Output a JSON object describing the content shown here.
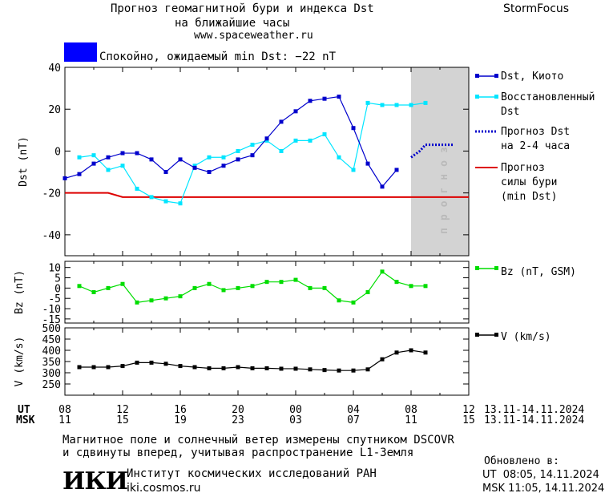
{
  "header": {
    "title_line1": "Прогноз геомагнитной бури и индекса Dst",
    "title_line2": "на ближайшие часы",
    "site": "www.spaceweather.ru",
    "brand": "StormFocus",
    "status_color": "#0000ff",
    "status_text": "Спокойно, ожидаемый min Dst: −22 nT"
  },
  "legend": {
    "dst_kyoto": "Dst, Киото",
    "restored_1": "Восстановленный",
    "restored_2": "Dst",
    "forecast_1": "Прогноз Dst",
    "forecast_2": "на 2-4 часа",
    "storm_1": "Прогноз",
    "storm_2": "силы бури",
    "storm_3": "(min Dst)",
    "bz": "Bz (nT, GSM)",
    "v": "V (km/s)"
  },
  "forecast_band_label": "прогноз",
  "time_axis": {
    "ut_label": "UT",
    "msk_label": "MSK",
    "ut_ticks": [
      "08",
      "12",
      "16",
      "20",
      "00",
      "04",
      "08",
      "12"
    ],
    "msk_ticks": [
      "11",
      "15",
      "19",
      "23",
      "03",
      "07",
      "11",
      "15"
    ],
    "range_ut": "13.11-14.11.2024",
    "range_msk": "13.11-14.11.2024"
  },
  "footer": {
    "note_1": "Магнитное поле и солнечный ветер измерены спутником DSCOVR",
    "note_2": "и сдвинуты вперед, учитывая распространение L1-Земля",
    "logo": "ИКИ",
    "institute": "Институт космических исследований РАН",
    "institute_url": "iki.cosmos.ru",
    "updated_label": "Обновлено в:",
    "updated_ut": "UT  08:05, 14.11.2024",
    "updated_msk": "MSK 11:05, 14.11.2024"
  },
  "colors": {
    "dst": "#0000cc",
    "restored": "#00e5ff",
    "forecast": "#0000cc",
    "storm": "#dd0000",
    "bz": "#00dd00",
    "v": "#000000",
    "band": "#d3d3d3"
  },
  "chart_data": [
    {
      "type": "line",
      "name": "dst",
      "xunit": "hours since 08 UT 13.11.2024",
      "ylabel": "Dst (nT)",
      "xlim": [
        0,
        28
      ],
      "ylim": [
        -50,
        40
      ],
      "yticks": [
        -40,
        -20,
        0,
        20,
        40
      ],
      "forecast_band": [
        24,
        28
      ],
      "series": [
        {
          "name": "Dst, Киото",
          "x": [
            0,
            1,
            2,
            3,
            4,
            5,
            6,
            7,
            8,
            9,
            10,
            11,
            12,
            13,
            14,
            15,
            16,
            17,
            18,
            19,
            20,
            21,
            22,
            23
          ],
          "y": [
            -13,
            -11,
            -6,
            -3,
            -1,
            -1,
            -4,
            -10,
            -4,
            -8,
            -10,
            -7,
            -4,
            -2,
            6,
            14,
            19,
            24,
            25,
            26,
            11,
            -6,
            -17,
            -9
          ]
        },
        {
          "name": "Восстановленный Dst",
          "x": [
            1,
            2,
            3,
            4,
            5,
            6,
            7,
            8,
            9,
            10,
            11,
            12,
            13,
            14,
            15,
            16,
            17,
            18,
            19,
            20,
            21,
            22,
            23,
            24,
            25
          ],
          "y": [
            -3,
            -2,
            -9,
            -7,
            -18,
            -22,
            -24,
            -25,
            -7,
            -3,
            -3,
            0,
            3,
            5,
            0,
            5,
            5,
            8,
            -3,
            -9,
            23,
            22,
            22,
            22,
            23
          ]
        },
        {
          "name": "Прогноз Dst на 2-4 часа",
          "x": [
            24,
            24.6,
            25,
            25.7,
            26.3,
            27
          ],
          "y": [
            -3,
            0,
            3,
            3,
            3,
            3
          ]
        },
        {
          "name": "Прогноз силы бури (min Dst)",
          "x": [
            0,
            3,
            4,
            28
          ],
          "y": [
            -20,
            -20,
            -22,
            -22
          ]
        }
      ]
    },
    {
      "type": "line",
      "name": "bz",
      "ylabel": "Bz (nT)",
      "xlim": [
        0,
        28
      ],
      "ylim": [
        -17,
        13
      ],
      "yticks": [
        10,
        5,
        0,
        -5,
        -10,
        -15
      ],
      "series": [
        {
          "name": "Bz (nT, GSM)",
          "x": [
            1,
            2,
            3,
            4,
            5,
            6,
            7,
            8,
            9,
            10,
            11,
            12,
            13,
            14,
            15,
            16,
            17,
            18,
            19,
            20,
            21,
            22,
            23,
            24,
            25
          ],
          "y": [
            1,
            -2,
            0,
            2,
            -7,
            -6,
            -5,
            -4,
            0,
            2,
            -1,
            0,
            1,
            3,
            3,
            4,
            0,
            0,
            -6,
            -7,
            -2,
            8,
            3,
            1,
            1
          ]
        }
      ]
    },
    {
      "type": "line",
      "name": "v",
      "ylabel": "V (km/s)",
      "xlim": [
        0,
        28
      ],
      "ylim": [
        200,
        500
      ],
      "yticks": [
        500,
        450,
        400,
        350,
        300,
        250
      ],
      "series": [
        {
          "name": "V (km/s)",
          "x": [
            1,
            2,
            3,
            4,
            5,
            6,
            7,
            8,
            9,
            10,
            11,
            12,
            13,
            14,
            15,
            16,
            17,
            18,
            19,
            20,
            21,
            22,
            23,
            24,
            25
          ],
          "y": [
            325,
            325,
            325,
            330,
            345,
            345,
            340,
            330,
            325,
            320,
            320,
            325,
            320,
            320,
            318,
            318,
            315,
            312,
            310,
            310,
            315,
            360,
            390,
            400,
            390
          ]
        }
      ]
    }
  ]
}
